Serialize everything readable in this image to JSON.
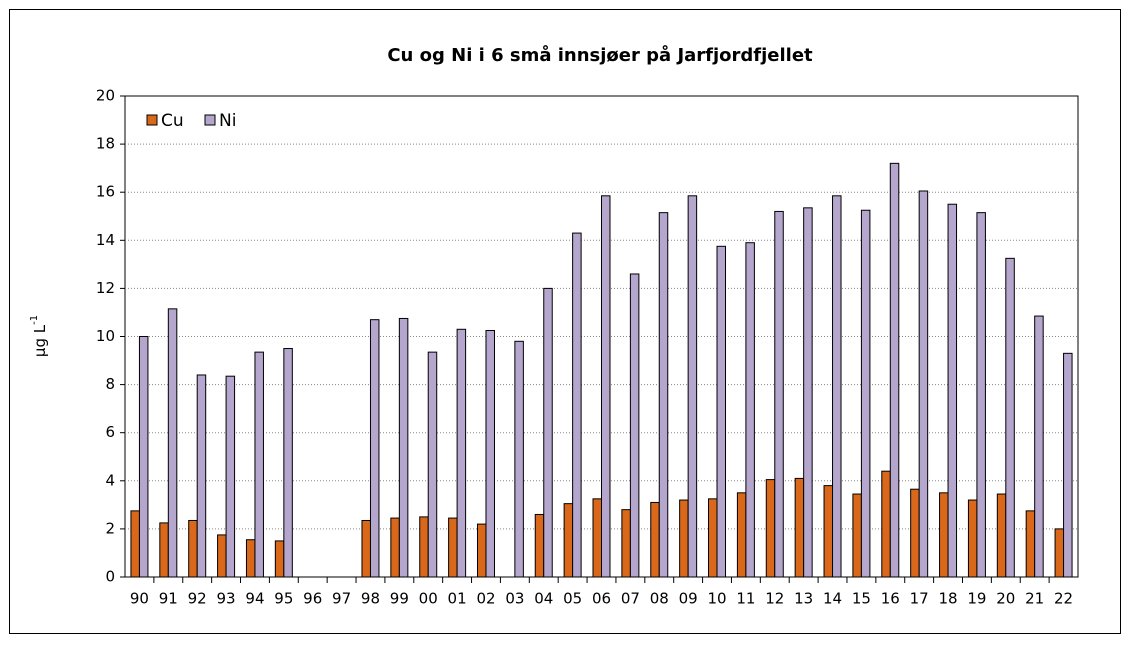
{
  "chart_data": {
    "type": "bar",
    "title": "Cu og Ni i 6 små innsjøer på Jarfjordfjellet",
    "y_label": "µg L",
    "y_label_superscript": "-1",
    "categories": [
      "90",
      "91",
      "92",
      "93",
      "94",
      "95",
      "96",
      "97",
      "98",
      "99",
      "00",
      "01",
      "02",
      "03",
      "04",
      "05",
      "06",
      "07",
      "08",
      "09",
      "10",
      "11",
      "12",
      "13",
      "14",
      "15",
      "16",
      "17",
      "18",
      "19",
      "20",
      "21",
      "22"
    ],
    "series": [
      {
        "name": "Cu",
        "color": "#d9681a",
        "values": [
          2.75,
          2.25,
          2.35,
          1.75,
          1.55,
          1.5,
          null,
          null,
          2.35,
          2.45,
          2.5,
          2.45,
          2.2,
          null,
          2.6,
          3.05,
          3.25,
          2.8,
          3.1,
          3.2,
          3.25,
          3.5,
          4.05,
          4.1,
          3.8,
          3.45,
          4.4,
          3.65,
          3.5,
          3.2,
          3.45,
          2.75,
          2.0
        ]
      },
      {
        "name": "Ni",
        "color": "#b4a6cc",
        "values": [
          10.0,
          11.15,
          8.4,
          8.35,
          9.35,
          9.5,
          null,
          null,
          10.7,
          10.75,
          9.35,
          10.3,
          10.25,
          9.8,
          12.0,
          14.3,
          15.85,
          12.6,
          15.15,
          15.85,
          13.75,
          13.9,
          15.2,
          15.35,
          15.85,
          15.25,
          17.2,
          16.05,
          15.5,
          15.15,
          13.25,
          10.85,
          9.3
        ]
      }
    ],
    "ylim": [
      0,
      20
    ],
    "yticks": [
      0,
      2,
      4,
      6,
      8,
      10,
      12,
      14,
      16,
      18,
      20
    ],
    "grid": true,
    "legend": "top-left"
  }
}
